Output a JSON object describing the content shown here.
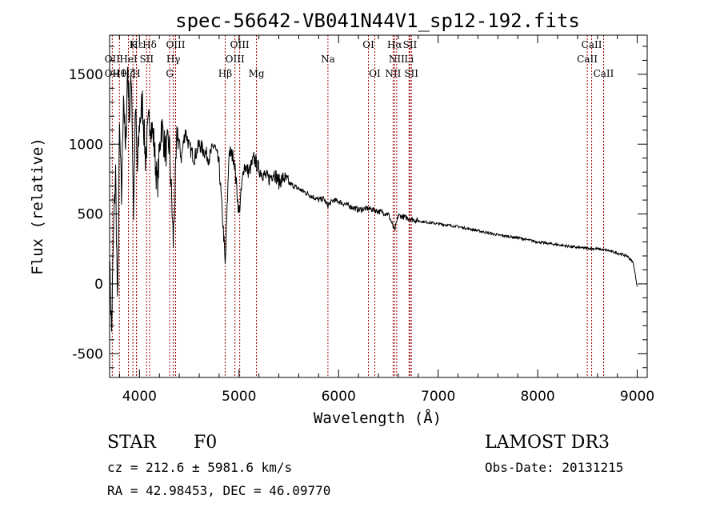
{
  "chart_data": {
    "type": "line",
    "title": "spec-56642-VB041N44V1_sp12-192.fits",
    "xlabel": "Wavelength (Å)",
    "ylabel": "Flux (relative)",
    "xlim": [
      3700,
      9100
    ],
    "ylim": [
      -670,
      1780
    ],
    "xticks": [
      4000,
      5000,
      6000,
      7000,
      8000,
      9000
    ],
    "yticks": [
      -500,
      0,
      500,
      1000,
      1500
    ],
    "series": [
      {
        "name": "spectrum",
        "x": [
          3700,
          3720,
          3740,
          3760,
          3780,
          3800,
          3820,
          3840,
          3860,
          3880,
          3900,
          3920,
          3940,
          3960,
          3980,
          4000,
          4030,
          4060,
          4100,
          4140,
          4180,
          4220,
          4260,
          4300,
          4340,
          4380,
          4420,
          4460,
          4500,
          4550,
          4600,
          4650,
          4700,
          4750,
          4800,
          4850,
          4861,
          4900,
          4950,
          5000,
          5050,
          5100,
          5150,
          5200,
          5250,
          5300,
          5350,
          5400,
          5450,
          5500,
          5550,
          5600,
          5650,
          5700,
          5750,
          5800,
          5850,
          5890,
          5950,
          6000,
          6100,
          6200,
          6300,
          6400,
          6500,
          6563,
          6600,
          6700,
          6800,
          6900,
          7000,
          7200,
          7400,
          7600,
          7800,
          8000,
          8200,
          8400,
          8600,
          8700,
          8800,
          8900,
          8960,
          9000
        ],
        "y": [
          150,
          -350,
          400,
          800,
          -200,
          1100,
          600,
          1400,
          900,
          1550,
          1200,
          1500,
          500,
          1250,
          800,
          1150,
          1300,
          900,
          1200,
          1050,
          700,
          1150,
          950,
          1000,
          300,
          1100,
          900,
          1100,
          980,
          900,
          1000,
          950,
          900,
          1000,
          850,
          300,
          120,
          950,
          900,
          500,
          850,
          800,
          900,
          820,
          780,
          750,
          800,
          730,
          760,
          720,
          700,
          680,
          660,
          640,
          620,
          600,
          610,
          560,
          600,
          590,
          560,
          530,
          540,
          520,
          500,
          380,
          490,
          470,
          450,
          440,
          430,
          410,
          380,
          350,
          330,
          300,
          280,
          260,
          250,
          240,
          220,
          200,
          150,
          -20
        ]
      }
    ],
    "line_labels": [
      {
        "label": "Hε",
        "x": 3970,
        "row": "top"
      },
      {
        "label": "K",
        "x": 3934,
        "row": "top"
      },
      {
        "label": "Hδ",
        "x": 4102,
        "row": "top"
      },
      {
        "label": "OIII",
        "x": 4363,
        "row": "top"
      },
      {
        "label": "OIII",
        "x": 5007,
        "row": "top"
      },
      {
        "label": "OI",
        "x": 6300,
        "row": "top"
      },
      {
        "label": "Hα",
        "x": 6563,
        "row": "top"
      },
      {
        "label": "SII",
        "x": 6717,
        "row": "top"
      },
      {
        "label": "CaII",
        "x": 8542,
        "row": "top"
      },
      {
        "label": "OII",
        "x": 3727,
        "row": "mid"
      },
      {
        "label": "HeI",
        "x": 3889,
        "row": "mid"
      },
      {
        "label": "SII",
        "x": 4072,
        "row": "mid"
      },
      {
        "label": "Hγ",
        "x": 4340,
        "row": "mid"
      },
      {
        "label": "OIII",
        "x": 4959,
        "row": "mid"
      },
      {
        "label": "Na",
        "x": 5893,
        "row": "mid"
      },
      {
        "label": "NII",
        "x": 6584,
        "row": "mid"
      },
      {
        "label": "Li",
        "x": 6708,
        "row": "mid"
      },
      {
        "label": "CaII",
        "x": 8498,
        "row": "mid"
      },
      {
        "label": "OII",
        "x": 3727,
        "row": "low"
      },
      {
        "label": "Hθ",
        "x": 3798,
        "row": "low"
      },
      {
        "label": "Hζ",
        "x": 3889,
        "row": "low"
      },
      {
        "label": "H",
        "x": 3969,
        "row": "low"
      },
      {
        "label": "G",
        "x": 4304,
        "row": "low"
      },
      {
        "label": "Hβ",
        "x": 4861,
        "row": "low"
      },
      {
        "label": "Mg",
        "x": 5175,
        "row": "low"
      },
      {
        "label": "OI",
        "x": 6364,
        "row": "low"
      },
      {
        "label": "NII",
        "x": 6548,
        "row": "low"
      },
      {
        "label": "SII",
        "x": 6731,
        "row": "low"
      },
      {
        "label": "CaII",
        "x": 8662,
        "row": "low"
      }
    ]
  },
  "info": {
    "class": "STAR",
    "subclass": "F0",
    "survey": "LAMOST DR3",
    "cz": "cz = 212.6 ± 5981.6 km/s",
    "obsdate": "Obs-Date: 20131215",
    "radec": "RA =  42.98453, DEC =  46.09770"
  }
}
